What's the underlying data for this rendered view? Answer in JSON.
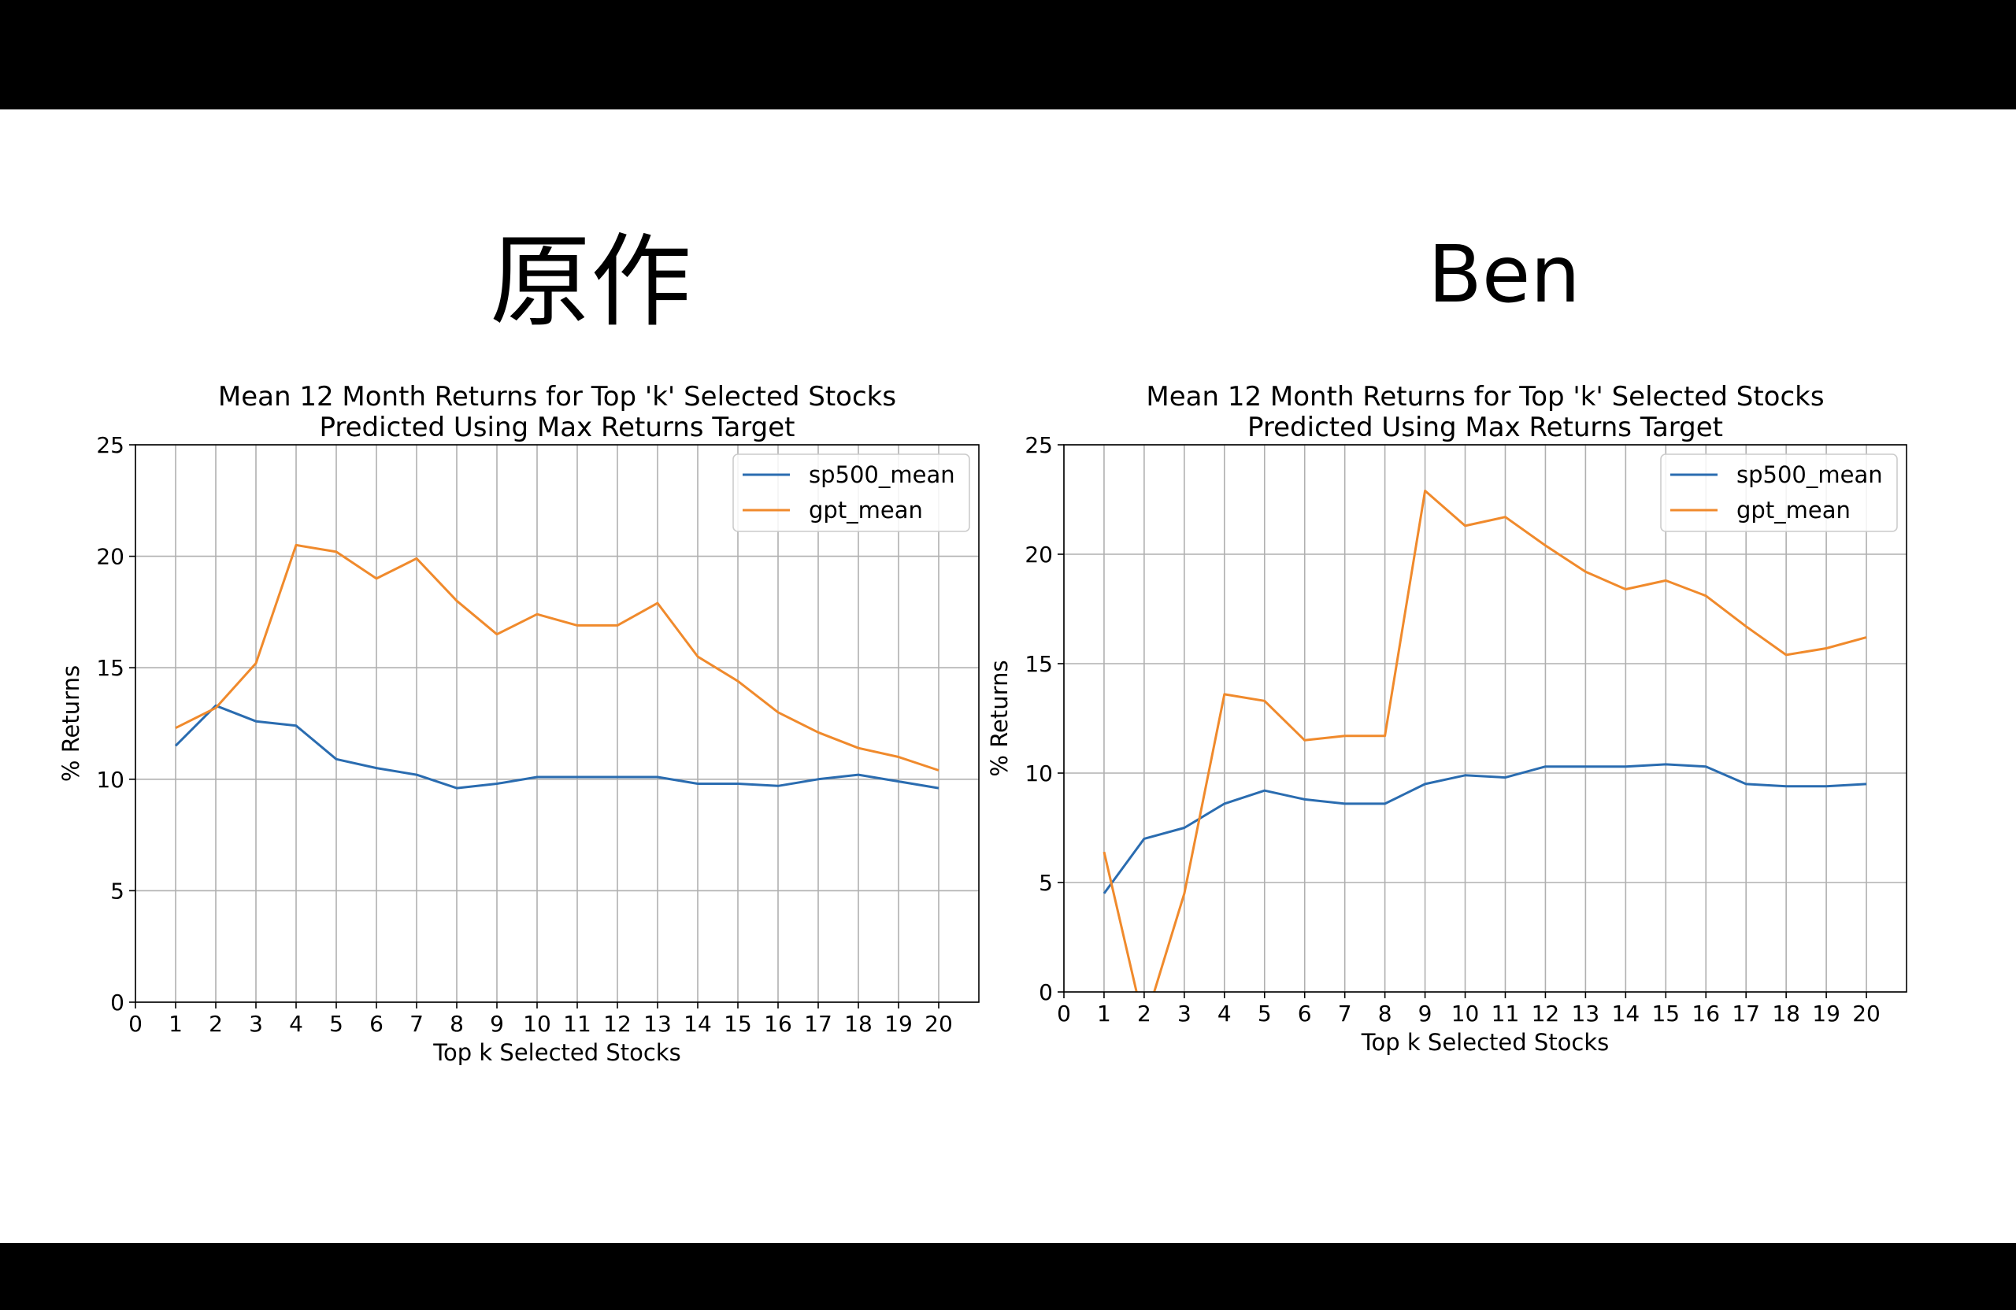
{
  "headings": {
    "left": "原作",
    "right": "Ben"
  },
  "colors": {
    "sp500": "#1f77b4",
    "gpt": "#ff7f0e",
    "grid": "#b0b0b0"
  },
  "chart_data": [
    {
      "type": "line",
      "title": "Mean 12 Month Returns for Top 'k' Selected Stocks\nPredicted Using Max Returns Target",
      "xlabel": "Top k Selected Stocks",
      "ylabel": "% Returns",
      "xlim": [
        0,
        21
      ],
      "ylim": [
        0,
        25
      ],
      "xticks": [
        0,
        1,
        2,
        3,
        4,
        5,
        6,
        7,
        8,
        9,
        10,
        11,
        12,
        13,
        14,
        15,
        16,
        17,
        18,
        19,
        20
      ],
      "yticks": [
        0,
        5,
        10,
        15,
        20,
        25
      ],
      "grid": true,
      "legend": "upper right",
      "x": [
        1,
        2,
        3,
        4,
        5,
        6,
        7,
        8,
        9,
        10,
        11,
        12,
        13,
        14,
        15,
        16,
        17,
        18,
        19,
        20
      ],
      "series": [
        {
          "name": "sp500_mean",
          "color": "#2a6cb0",
          "values": [
            11.5,
            13.3,
            12.6,
            12.4,
            10.9,
            10.5,
            10.2,
            9.6,
            9.8,
            10.1,
            10.1,
            10.1,
            10.1,
            9.8,
            9.8,
            9.7,
            10.0,
            10.2,
            9.9,
            9.6
          ]
        },
        {
          "name": "gpt_mean",
          "color": "#f08a2c",
          "values": [
            12.3,
            13.2,
            15.2,
            20.5,
            20.2,
            19.0,
            19.9,
            18.0,
            16.5,
            17.4,
            16.9,
            16.9,
            17.9,
            15.5,
            14.4,
            13.0,
            12.1,
            11.4,
            11.0,
            10.4
          ]
        }
      ]
    },
    {
      "type": "line",
      "title": "Mean 12 Month Returns for Top 'k' Selected Stocks\nPredicted Using Max Returns Target",
      "xlabel": "Top k Selected Stocks",
      "ylabel": "% Returns",
      "xlim": [
        0,
        21
      ],
      "ylim": [
        0,
        25
      ],
      "xticks": [
        0,
        1,
        2,
        3,
        4,
        5,
        6,
        7,
        8,
        9,
        10,
        11,
        12,
        13,
        14,
        15,
        16,
        17,
        18,
        19,
        20
      ],
      "yticks": [
        0,
        5,
        10,
        15,
        20,
        25
      ],
      "grid": true,
      "legend": "upper right",
      "x": [
        1,
        2,
        3,
        4,
        5,
        6,
        7,
        8,
        9,
        10,
        11,
        12,
        13,
        14,
        15,
        16,
        17,
        18,
        19,
        20
      ],
      "series": [
        {
          "name": "sp500_mean",
          "color": "#2a6cb0",
          "values": [
            4.5,
            7.0,
            7.5,
            8.6,
            9.2,
            8.8,
            8.6,
            8.6,
            9.5,
            9.9,
            9.8,
            10.3,
            10.3,
            10.3,
            10.4,
            10.3,
            9.5,
            9.4,
            9.4,
            9.5
          ]
        },
        {
          "name": "gpt_mean",
          "color": "#f08a2c",
          "values": [
            6.4,
            -1.5,
            4.5,
            13.6,
            13.3,
            11.5,
            11.7,
            11.7,
            22.9,
            21.3,
            21.7,
            20.4,
            19.2,
            18.4,
            18.8,
            18.1,
            16.7,
            15.4,
            15.7,
            16.2
          ]
        }
      ]
    }
  ]
}
